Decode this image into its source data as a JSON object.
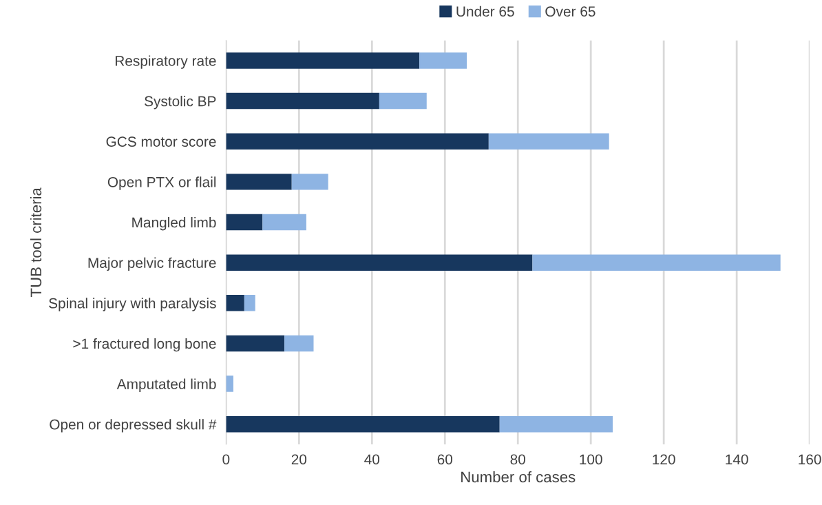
{
  "chart_data": {
    "type": "bar",
    "orientation": "horizontal",
    "stacked": true,
    "categories": [
      "Respiratory rate",
      "Systolic BP",
      "GCS motor score",
      "Open PTX or flail",
      "Mangled limb",
      "Major pelvic fracture",
      "Spinal injury with paralysis",
      ">1 fractured long bone",
      "Amputated limb",
      "Open or depressed skull #"
    ],
    "series": [
      {
        "name": "Under 65",
        "color": "#17375e",
        "values": [
          53,
          42,
          72,
          18,
          10,
          84,
          5,
          16,
          0,
          75
        ]
      },
      {
        "name": "Over 65",
        "color": "#8eb4e3",
        "values": [
          13,
          13,
          33,
          10,
          12,
          68,
          3,
          8,
          2,
          31
        ]
      }
    ],
    "xlabel": "Number of cases",
    "ylabel": "TUB tool criteria",
    "xlim": [
      0,
      160
    ],
    "xticks": [
      0,
      20,
      40,
      60,
      80,
      100,
      120,
      140,
      160
    ],
    "grid": "x",
    "legend": "top"
  }
}
